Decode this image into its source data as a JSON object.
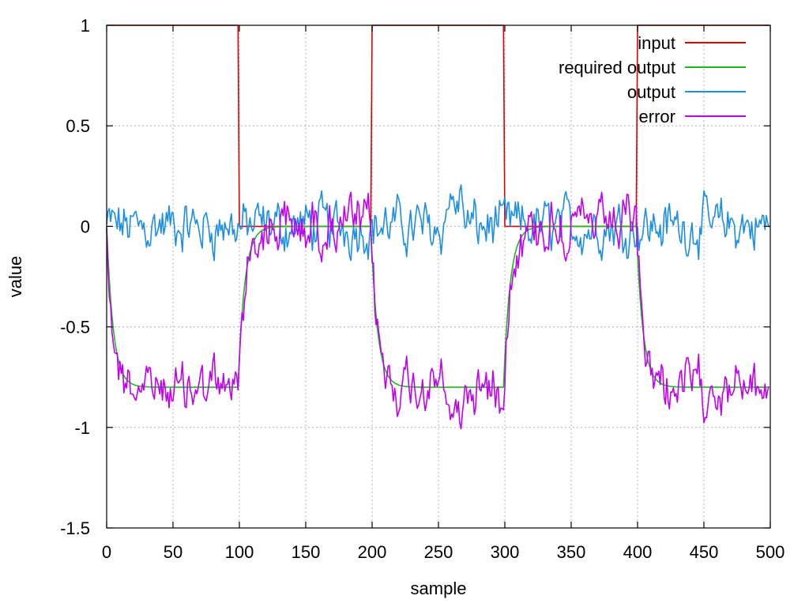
{
  "chart_data": {
    "type": "line",
    "title": "",
    "xlabel": "sample",
    "ylabel": "value",
    "xlim": [
      0,
      500
    ],
    "ylim": [
      -1.5,
      1
    ],
    "xticks": [
      0,
      50,
      100,
      150,
      200,
      250,
      300,
      350,
      400,
      450,
      500
    ],
    "yticks": [
      1,
      0.5,
      0,
      -0.5,
      -1,
      -1.5
    ],
    "xtick_labels": [
      "0",
      "50",
      "100",
      "150",
      "200",
      "250",
      "300",
      "350",
      "400",
      "450",
      "500"
    ],
    "ytick_labels": [
      "1",
      "0.5",
      "0",
      "-0.5",
      "-1",
      "-1.5"
    ],
    "grid": true,
    "legend_position": "top-right",
    "series": [
      {
        "name": "input",
        "color": "#e00000",
        "kind": "square_wave",
        "high": 1,
        "low": 0,
        "period": 200,
        "duty_start": 0,
        "switch_at": 100
      },
      {
        "name": "required output",
        "color": "#1db81d",
        "kind": "first_order",
        "low_level": -0.8,
        "high_level": 0,
        "tau": 12,
        "period": 200
      },
      {
        "name": "output",
        "color": "#1c8ee6",
        "kind": "noisy_tracking",
        "approx_range": [
          -0.28,
          0.36
        ],
        "center": 0
      },
      {
        "name": "error",
        "color": "#c000f0",
        "kind": "noisy_difference",
        "approx_range": [
          -1.17,
          0.22
        ]
      }
    ],
    "legend": [
      {
        "label": "input",
        "color": "#e00000"
      },
      {
        "label": "required output",
        "color": "#1db81d"
      },
      {
        "label": "output",
        "color": "#1c8ee6"
      },
      {
        "label": "error",
        "color": "#c000f0"
      }
    ]
  }
}
